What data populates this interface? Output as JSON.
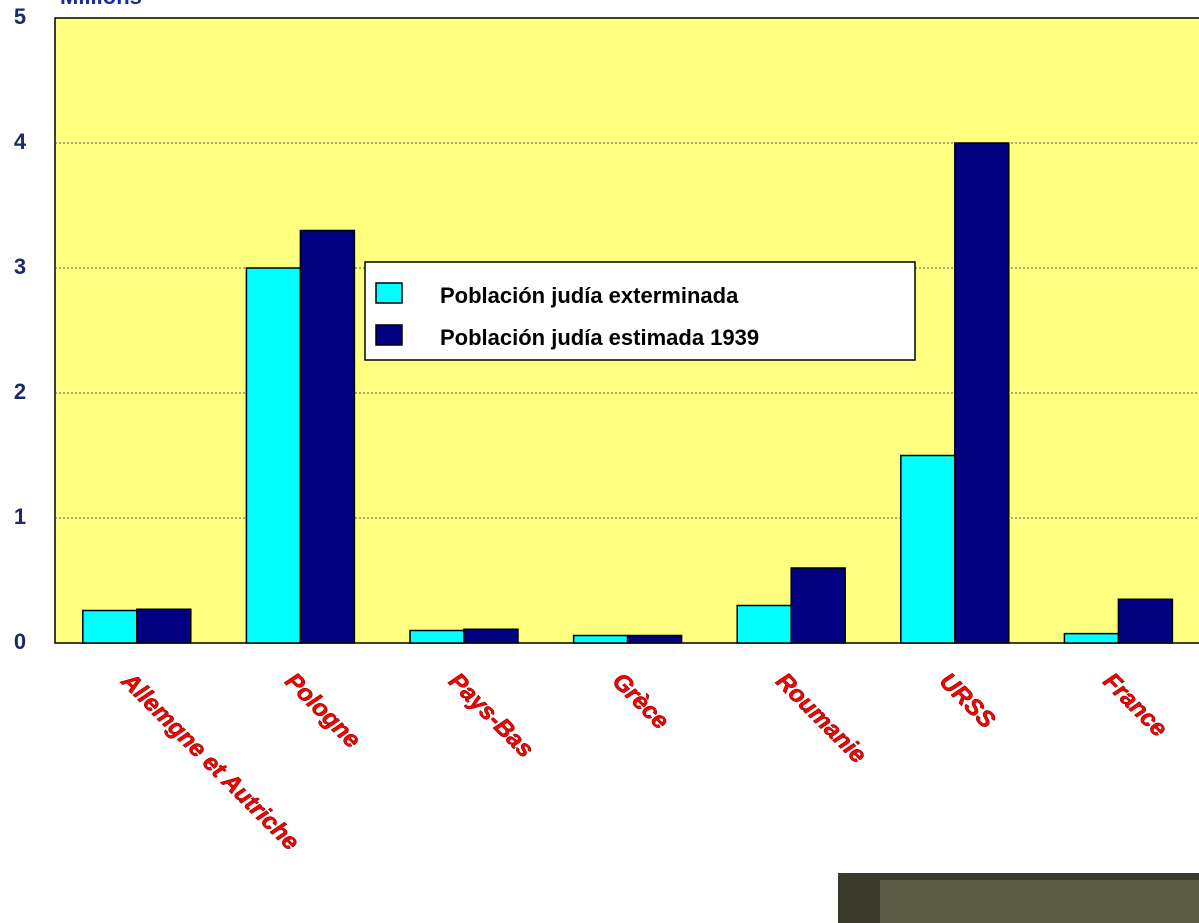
{
  "chart_data": {
    "type": "bar",
    "y_label": "Millions",
    "categories": [
      "Allemgne et Autriche",
      "Pologne",
      "Pays-Bas",
      "Grèce",
      "Roumanie",
      "URSS",
      "France"
    ],
    "series": [
      {
        "name": "Población judía exterminada",
        "color": "#00ffff",
        "values": [
          0.26,
          3.0,
          0.1,
          0.06,
          0.3,
          1.5,
          0.075
        ]
      },
      {
        "name": "Población judía estimada 1939",
        "color": "#000080",
        "values": [
          0.27,
          3.3,
          0.11,
          0.06,
          0.6,
          4.0,
          0.35
        ]
      }
    ],
    "ylim": [
      0,
      5
    ],
    "yticks": [
      0,
      1,
      2,
      3,
      4,
      5
    ],
    "grid": true
  }
}
